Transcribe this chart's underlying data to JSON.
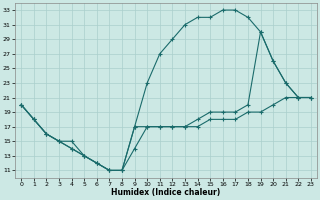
{
  "xlabel": "Humidex (Indice chaleur)",
  "background_color": "#cce8e4",
  "line_color": "#1a6b6b",
  "grid_color": "#aacfcc",
  "xlim": [
    -0.5,
    23.5
  ],
  "ylim": [
    10,
    34
  ],
  "xticks": [
    0,
    1,
    2,
    3,
    4,
    5,
    6,
    7,
    8,
    9,
    10,
    11,
    12,
    13,
    14,
    15,
    16,
    17,
    18,
    19,
    20,
    21,
    22,
    23
  ],
  "yticks": [
    11,
    13,
    15,
    17,
    19,
    21,
    23,
    25,
    27,
    29,
    31,
    33
  ],
  "line1_x": [
    0,
    1,
    2,
    3,
    4,
    5,
    6,
    7,
    8,
    9,
    10,
    11,
    12,
    13,
    14,
    15,
    16,
    17,
    18,
    19,
    20,
    21,
    22,
    23
  ],
  "line1_y": [
    20,
    18,
    16,
    15,
    14,
    13,
    12,
    11,
    11,
    14,
    17,
    17,
    17,
    17,
    17,
    18,
    18,
    18,
    19,
    19,
    20,
    21,
    21,
    21
  ],
  "line2_x": [
    0,
    1,
    2,
    3,
    4,
    5,
    6,
    7,
    8,
    9,
    10,
    11,
    12,
    13,
    14,
    15,
    16,
    17,
    18,
    19,
    20,
    21,
    22,
    23
  ],
  "line2_y": [
    20,
    18,
    16,
    15,
    15,
    13,
    12,
    11,
    11,
    17,
    23,
    27,
    29,
    31,
    32,
    32,
    33,
    33,
    32,
    30,
    26,
    23,
    21,
    21
  ],
  "line3_x": [
    0,
    1,
    2,
    3,
    4,
    5,
    6,
    7,
    8,
    9,
    10,
    11,
    12,
    13,
    14,
    15,
    16,
    17,
    18,
    19,
    20,
    21,
    22,
    23
  ],
  "line3_y": [
    20,
    18,
    16,
    15,
    14,
    13,
    12,
    11,
    11,
    17,
    17,
    17,
    17,
    17,
    18,
    19,
    19,
    19,
    20,
    30,
    26,
    23,
    21,
    21
  ]
}
